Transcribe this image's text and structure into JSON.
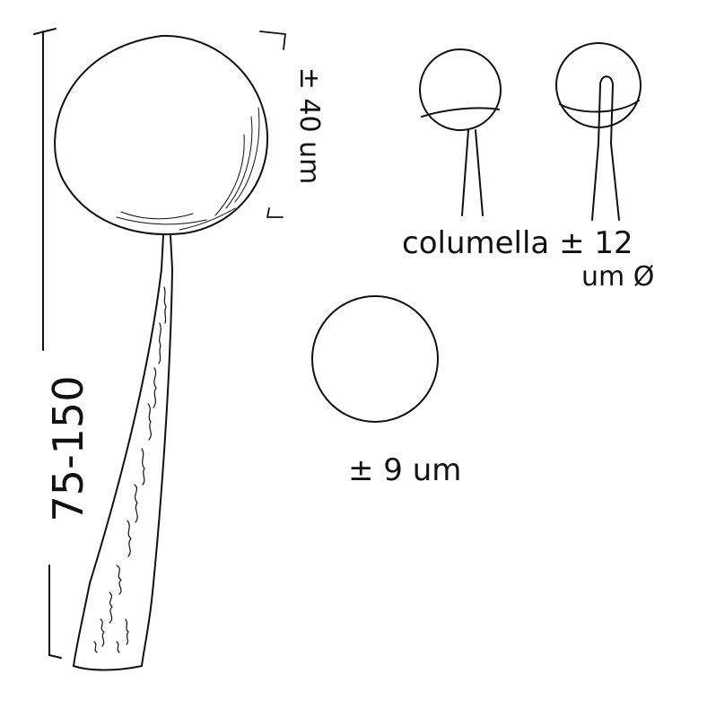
{
  "colors": {
    "ink": "#111111",
    "paper": "#ffffff"
  },
  "labels": {
    "total_height": "75-150",
    "sporangium_diameter": "± 40 um",
    "columella_line1": "columella ± 12",
    "columella_line2": "um Ø",
    "spore_diameter": "± 9 um"
  }
}
